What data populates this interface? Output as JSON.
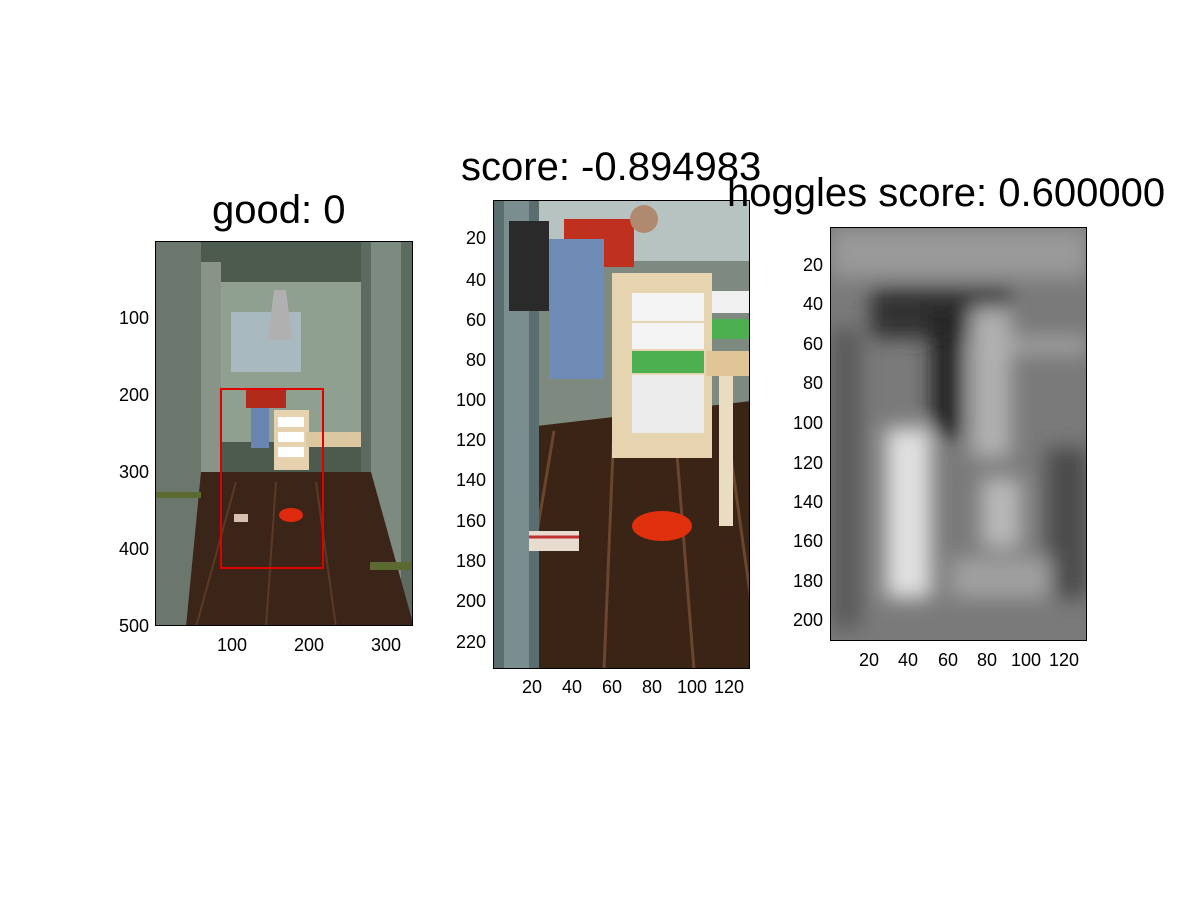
{
  "panels": [
    {
      "title": "good: 0",
      "y_ticks": [
        "100",
        "200",
        "300",
        "400",
        "500"
      ],
      "x_ticks": [
        "100",
        "200",
        "300"
      ],
      "description_icon": "photo-doorway-kitchen",
      "bbox_color": "#e00000"
    },
    {
      "title": "score: -0.894983",
      "y_ticks": [
        "20",
        "40",
        "60",
        "80",
        "100",
        "120",
        "140",
        "160",
        "180",
        "200",
        "220"
      ],
      "x_ticks": [
        "20",
        "40",
        "60",
        "80",
        "100",
        "120"
      ],
      "description_icon": "photo-crop-person-storage"
    },
    {
      "title": "hoggles score: 0.600000",
      "y_ticks": [
        "20",
        "40",
        "60",
        "80",
        "100",
        "120",
        "140",
        "160",
        "180",
        "200"
      ],
      "x_ticks": [
        "20",
        "40",
        "60",
        "80",
        "100",
        "120"
      ],
      "description_icon": "grayscale-hoggles-reconstruction"
    }
  ]
}
